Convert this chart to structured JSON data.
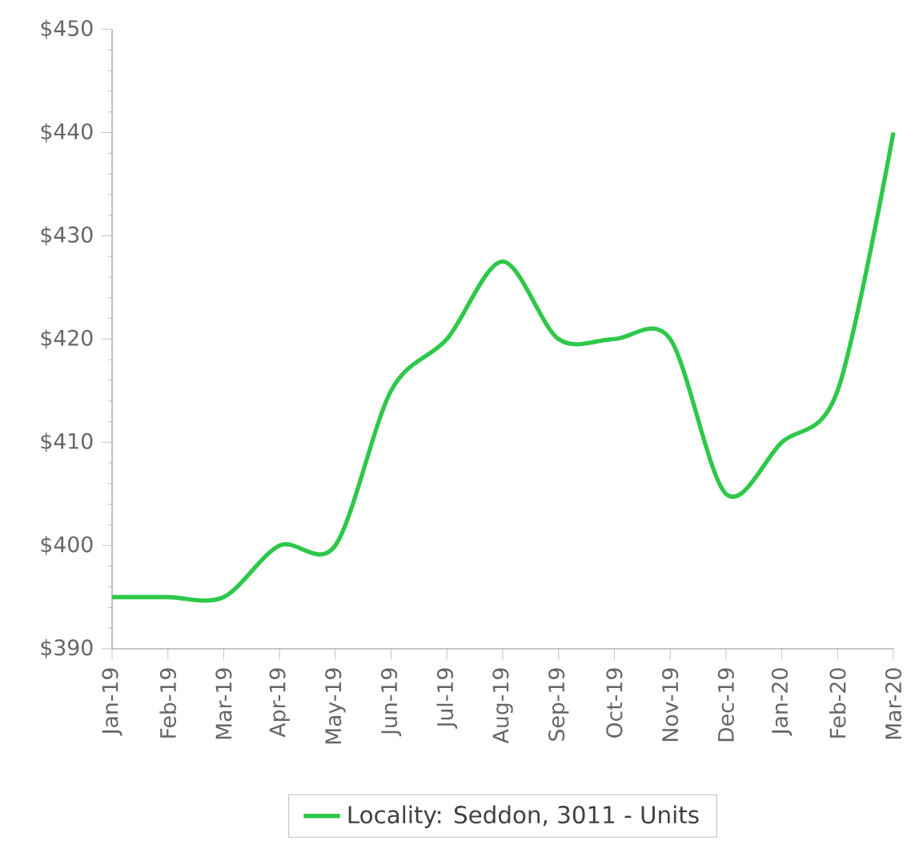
{
  "chart_data": {
    "type": "line",
    "categories": [
      "Jan-19",
      "Feb-19",
      "Mar-19",
      "Apr-19",
      "May-19",
      "Jun-19",
      "Jul-19",
      "Aug-19",
      "Sep-19",
      "Oct-19",
      "Nov-19",
      "Dec-19",
      "Jan-20",
      "Feb-20",
      "Mar-20"
    ],
    "series": [
      {
        "name": "Locality: Seddon, 3011 - Units",
        "color": "#2ec84a",
        "values": [
          395,
          395,
          395,
          400,
          400,
          415,
          420,
          427.5,
          420,
          420,
          420,
          405,
          410,
          415,
          440
        ]
      }
    ],
    "ylim": [
      390,
      450
    ],
    "yticks": [
      {
        "value": 390,
        "label": "$390"
      },
      {
        "value": 400,
        "label": "$400"
      },
      {
        "value": 410,
        "label": "$410"
      },
      {
        "value": 420,
        "label": "$420"
      },
      {
        "value": 430,
        "label": "$430"
      },
      {
        "value": 440,
        "label": "$440"
      },
      {
        "value": 450,
        "label": "$450"
      }
    ],
    "grid": false,
    "legend": "bottom",
    "marker": "none",
    "line_style": "solid"
  }
}
